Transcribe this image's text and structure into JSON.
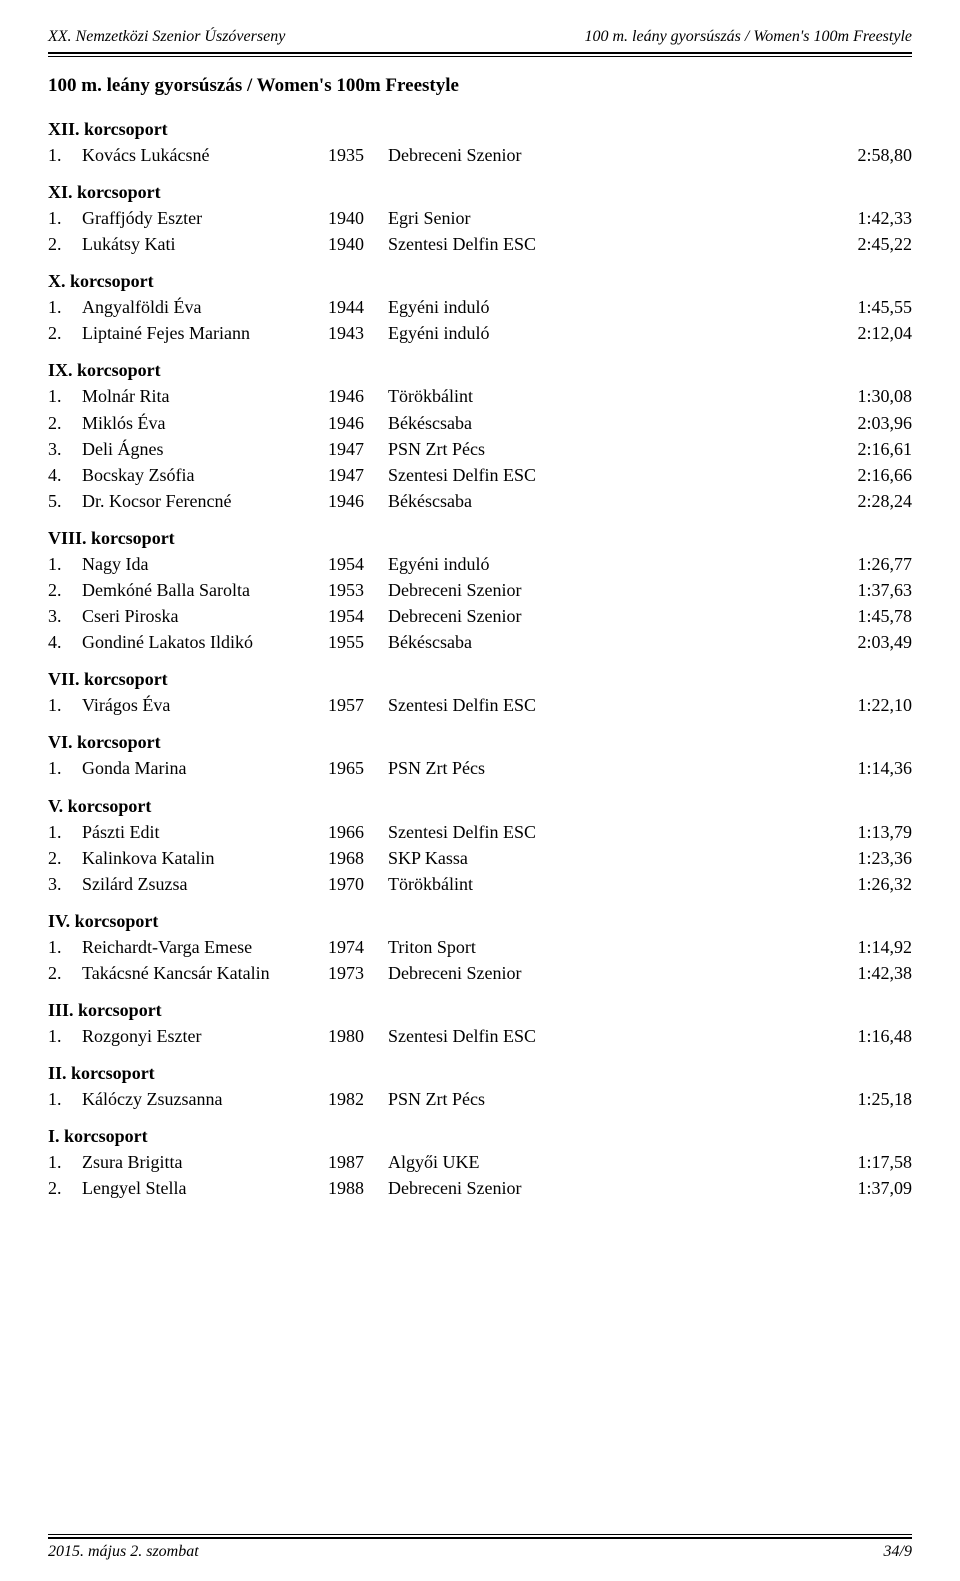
{
  "header": {
    "left": "XX. Nemzetközi Szenior Úszóverseny",
    "right": "100 m. leány gyorsúszás / Women's 100m Freestyle"
  },
  "event_title": "100 m. leány gyorsúszás / Women's 100m Freestyle",
  "groups": [
    {
      "title": "XII. korcsoport",
      "rows": [
        {
          "rank": "1.",
          "name": "Kovács Lukácsné",
          "year": "1935",
          "club": "Debreceni Szenior",
          "time": "2:58,80"
        }
      ]
    },
    {
      "title": "XI. korcsoport",
      "rows": [
        {
          "rank": "1.",
          "name": "Graffjódy Eszter",
          "year": "1940",
          "club": "Egri Senior",
          "time": "1:42,33"
        },
        {
          "rank": "2.",
          "name": "Lukátsy Kati",
          "year": "1940",
          "club": "Szentesi Delfin ESC",
          "time": "2:45,22"
        }
      ]
    },
    {
      "title": "X. korcsoport",
      "rows": [
        {
          "rank": "1.",
          "name": "Angyalföldi Éva",
          "year": "1944",
          "club": "Egyéni induló",
          "time": "1:45,55"
        },
        {
          "rank": "2.",
          "name": "Liptainé Fejes Mariann",
          "year": "1943",
          "club": "Egyéni induló",
          "time": "2:12,04"
        }
      ]
    },
    {
      "title": "IX. korcsoport",
      "rows": [
        {
          "rank": "1.",
          "name": "Molnár Rita",
          "year": "1946",
          "club": "Törökbálint",
          "time": "1:30,08"
        },
        {
          "rank": "2.",
          "name": "Miklós Éva",
          "year": "1946",
          "club": "Békéscsaba",
          "time": "2:03,96"
        },
        {
          "rank": "3.",
          "name": "Deli Ágnes",
          "year": "1947",
          "club": "PSN Zrt Pécs",
          "time": "2:16,61"
        },
        {
          "rank": "4.",
          "name": "Bocskay Zsófia",
          "year": "1947",
          "club": "Szentesi Delfin ESC",
          "time": "2:16,66"
        },
        {
          "rank": "5.",
          "name": "Dr. Kocsor Ferencné",
          "year": "1946",
          "club": "Békéscsaba",
          "time": "2:28,24"
        }
      ]
    },
    {
      "title": "VIII. korcsoport",
      "rows": [
        {
          "rank": "1.",
          "name": "Nagy Ida",
          "year": "1954",
          "club": "Egyéni induló",
          "time": "1:26,77"
        },
        {
          "rank": "2.",
          "name": "Demkóné Balla Sarolta",
          "year": "1953",
          "club": "Debreceni Szenior",
          "time": "1:37,63"
        },
        {
          "rank": "3.",
          "name": "Cseri Piroska",
          "year": "1954",
          "club": "Debreceni Szenior",
          "time": "1:45,78"
        },
        {
          "rank": "4.",
          "name": "Gondiné Lakatos Ildikó",
          "year": "1955",
          "club": "Békéscsaba",
          "time": "2:03,49"
        }
      ]
    },
    {
      "title": "VII. korcsoport",
      "rows": [
        {
          "rank": "1.",
          "name": "Virágos Éva",
          "year": "1957",
          "club": "Szentesi Delfin ESC",
          "time": "1:22,10"
        }
      ]
    },
    {
      "title": "VI. korcsoport",
      "rows": [
        {
          "rank": "1.",
          "name": "Gonda Marina",
          "year": "1965",
          "club": "PSN Zrt Pécs",
          "time": "1:14,36"
        }
      ]
    },
    {
      "title": "V. korcsoport",
      "rows": [
        {
          "rank": "1.",
          "name": "Pászti Edit",
          "year": "1966",
          "club": "Szentesi Delfin ESC",
          "time": "1:13,79"
        },
        {
          "rank": "2.",
          "name": "Kalinkova Katalin",
          "year": "1968",
          "club": "SKP Kassa",
          "time": "1:23,36"
        },
        {
          "rank": "3.",
          "name": "Szilárd Zsuzsa",
          "year": "1970",
          "club": "Törökbálint",
          "time": "1:26,32"
        }
      ]
    },
    {
      "title": "IV. korcsoport",
      "rows": [
        {
          "rank": "1.",
          "name": "Reichardt-Varga Emese",
          "year": "1974",
          "club": "Triton Sport",
          "time": "1:14,92"
        },
        {
          "rank": "2.",
          "name": "Takácsné Kancsár Katalin",
          "year": "1973",
          "club": "Debreceni Szenior",
          "time": "1:42,38"
        }
      ]
    },
    {
      "title": "III. korcsoport",
      "rows": [
        {
          "rank": "1.",
          "name": "Rozgonyi Eszter",
          "year": "1980",
          "club": "Szentesi Delfin ESC",
          "time": "1:16,48"
        }
      ]
    },
    {
      "title": "II. korcsoport",
      "rows": [
        {
          "rank": "1.",
          "name": "Kálóczy Zsuzsanna",
          "year": "1982",
          "club": "PSN Zrt Pécs",
          "time": "1:25,18"
        }
      ]
    },
    {
      "title": "I. korcsoport",
      "rows": [
        {
          "rank": "1.",
          "name": "Zsura Brigitta",
          "year": "1987",
          "club": "Algyői UKE",
          "time": "1:17,58"
        },
        {
          "rank": "2.",
          "name": "Lengyel Stella",
          "year": "1988",
          "club": "Debreceni Szenior",
          "time": "1:37,09"
        }
      ]
    }
  ],
  "footer": {
    "left": "2015. május 2. szombat",
    "right": "34/9"
  }
}
